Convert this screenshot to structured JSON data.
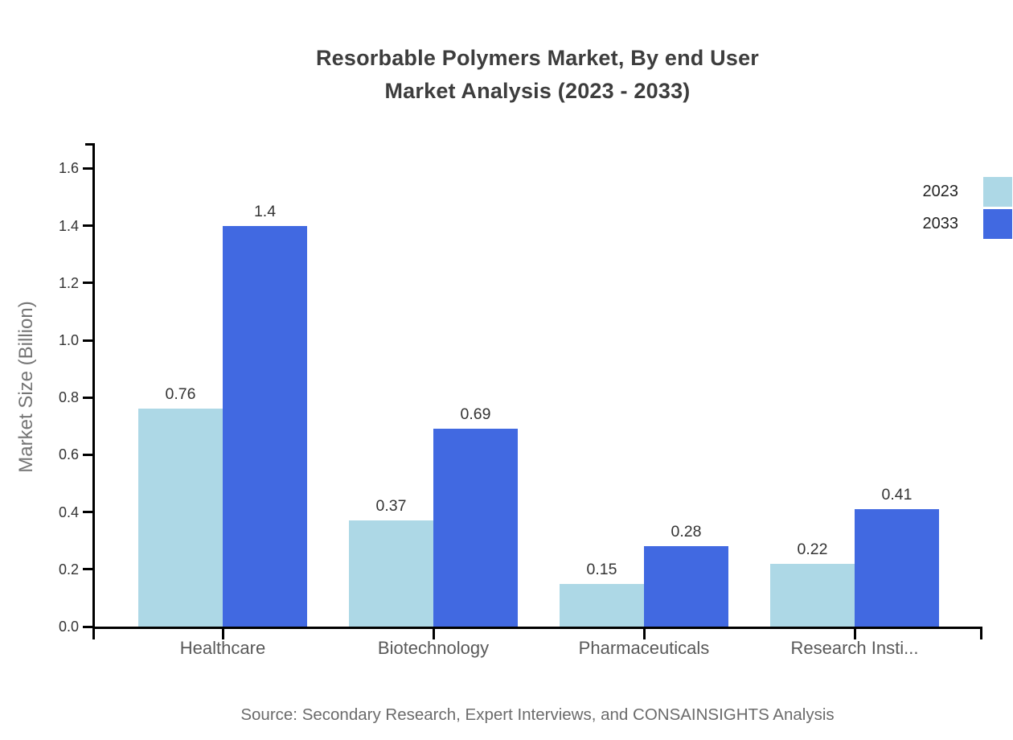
{
  "chart_data": {
    "type": "bar",
    "title": "Resorbable Polymers Market, By end User Market Analysis (2023 - 2033)",
    "title_lines": [
      "Resorbable Polymers Market, By end User",
      "Market Analysis (2023 - 2033)"
    ],
    "categories": [
      "Healthcare",
      "Biotechnology",
      "Pharmaceuticals",
      "Research Insti..."
    ],
    "series": [
      {
        "name": "2023",
        "color": "#ADD8E6",
        "values": [
          0.76,
          0.37,
          0.15,
          0.22
        ]
      },
      {
        "name": "2033",
        "color": "#4169E1",
        "values": [
          1.4,
          0.69,
          0.28,
          0.41
        ]
      }
    ],
    "xlabel": "",
    "ylabel": "Market Size (Billion)",
    "ylim": [
      0,
      1.6
    ],
    "yticks": [
      "0.0",
      "0.2",
      "0.4",
      "0.6",
      "0.8",
      "1.0",
      "1.2",
      "1.4",
      "1.6"
    ],
    "grid": false,
    "legend_position": "top-right",
    "bar_value_labels": true
  },
  "footer": {
    "source": "Source: Secondary Research, Expert Interviews, and CONSAINSIGHTS Analysis"
  },
  "colors": {
    "series_2023": "#ADD8E6",
    "series_2033": "#4169E1",
    "axis": "#000000",
    "title_text": "#3d3d3d",
    "tick_label_text": "#333333",
    "category_label_text": "#595959",
    "axis_label_text": "#757575",
    "source_text": "#6b6b6b",
    "background": "#ffffff"
  }
}
